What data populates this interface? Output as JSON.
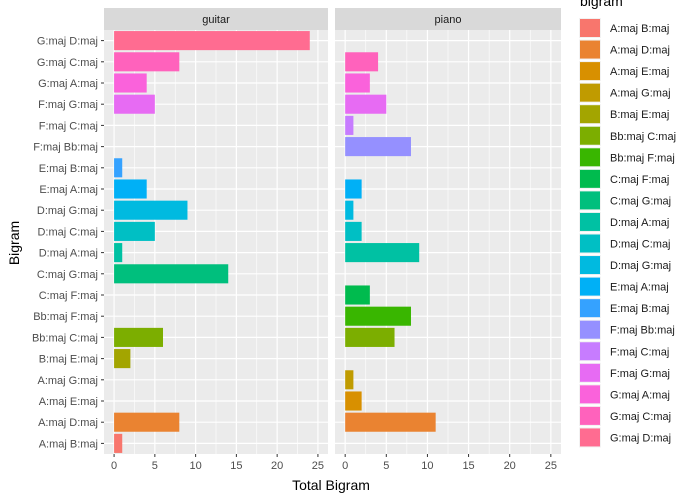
{
  "chart_data": {
    "type": "bar",
    "orientation": "horizontal",
    "xlabel": "Total Bigram",
    "ylabel": "Bigram",
    "xlim": [
      0,
      25
    ],
    "xticks": [
      0,
      5,
      10,
      15,
      20,
      25
    ],
    "xtick_labels": [
      "0",
      "5",
      "10",
      "15",
      "20",
      "25"
    ],
    "legend_title": "bigram",
    "legend_position": "right",
    "categories": [
      "A:maj B:maj",
      "A:maj D:maj",
      "A:maj E:maj",
      "A:maj G:maj",
      "B:maj E:maj",
      "Bb:maj C:maj",
      "Bb:maj F:maj",
      "C:maj F:maj",
      "C:maj G:maj",
      "D:maj A:maj",
      "D:maj C:maj",
      "D:maj G:maj",
      "E:maj A:maj",
      "E:maj B:maj",
      "F:maj Bb:maj",
      "F:maj C:maj",
      "F:maj G:maj",
      "G:maj A:maj",
      "G:maj C:maj",
      "G:maj D:maj"
    ],
    "colors": [
      "#F8766D",
      "#EA8331",
      "#D89000",
      "#C09B00",
      "#A3A500",
      "#7CAE00",
      "#39B600",
      "#00BB4E",
      "#00BF7D",
      "#00C1A3",
      "#00BFC4",
      "#00BAE0",
      "#00B0F6",
      "#35A2FF",
      "#9590FF",
      "#C77CFF",
      "#E76BF3",
      "#FA62DB",
      "#FF62BC",
      "#FF6C91"
    ],
    "panels": [
      {
        "name": "guitar",
        "values": [
          1,
          8,
          0,
          0,
          2,
          6,
          0,
          0,
          14,
          1,
          5,
          9,
          4,
          1,
          0,
          0,
          5,
          4,
          8,
          24
        ]
      },
      {
        "name": "piano",
        "values": [
          0,
          11,
          2,
          1,
          0,
          6,
          8,
          3,
          0,
          9,
          2,
          1,
          2,
          0,
          8,
          1,
          5,
          3,
          4,
          0
        ]
      }
    ]
  }
}
